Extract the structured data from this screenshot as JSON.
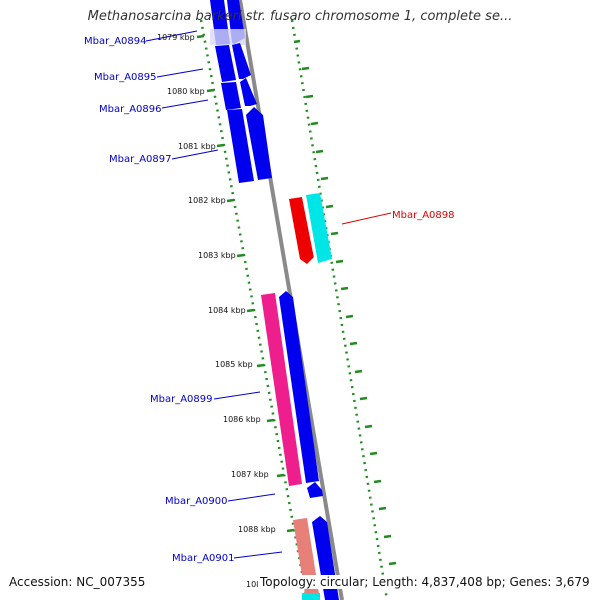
{
  "title": "Methanosarcina barkeri str. fusaro chromosome 1, complete se...",
  "accession_text": "Accession: NC_007355",
  "summary_text": "Topology: circular; Length: 4,837,408 bp; Genes: 3,679",
  "ruler_ticks": [
    "1079 kbp",
    "1080 kbp",
    "1081 kbp",
    "1082 kbp",
    "1083 kbp",
    "1084 kbp",
    "1085 kbp",
    "1086 kbp",
    "1087 kbp",
    "1088 kbp",
    "108"
  ],
  "gene_labels": [
    "Mbar_A0894",
    "Mbar_A0895",
    "Mbar_A0896",
    "Mbar_A0897",
    "Mbar_A0898",
    "Mbar_A0899",
    "Mbar_A0900",
    "Mbar_A0901"
  ],
  "colors": {
    "gene_blue": "#0000ee",
    "gene_red": "#ee0000",
    "gene_cyan": "#00e5e5",
    "gene_pink": "#ee1e8c",
    "gene_salmon": "#e8807a",
    "backbone": "#8a8a8a",
    "ruler_green": "#228b22",
    "label_blue": "#0000cc",
    "label_red": "#dd0000"
  }
}
